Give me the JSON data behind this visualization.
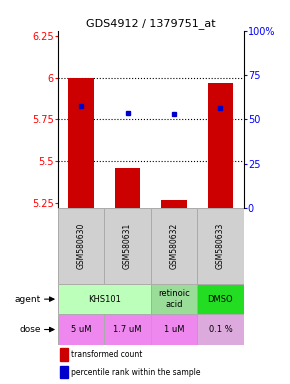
{
  "title": "GDS4912 / 1379751_at",
  "samples": [
    "GSM580630",
    "GSM580631",
    "GSM580632",
    "GSM580633"
  ],
  "bar_values": [
    6.0,
    5.46,
    5.27,
    5.97
  ],
  "bar_bottom": 5.22,
  "blue_values": [
    5.83,
    5.79,
    5.78,
    5.82
  ],
  "ylim": [
    5.22,
    6.28
  ],
  "yticks": [
    5.25,
    5.5,
    5.75,
    6.0,
    6.25
  ],
  "ytick_labels": [
    "5.25",
    "5.5",
    "5.75",
    "6",
    "6.25"
  ],
  "right_ytick_pcts": [
    0,
    25,
    50,
    75,
    100
  ],
  "right_ytick_labels": [
    "0",
    "25",
    "50",
    "75",
    "100%"
  ],
  "bar_color": "#cc0000",
  "blue_color": "#0000cc",
  "hline_values": [
    6.0,
    5.75,
    5.5
  ],
  "agent_groups": [
    {
      "start": 0,
      "end": 1,
      "label": "KHS101",
      "color": "#bbffbb"
    },
    {
      "start": 2,
      "end": 2,
      "label": "retinoic\nacid",
      "color": "#99dd99"
    },
    {
      "start": 3,
      "end": 3,
      "label": "DMSO",
      "color": "#22dd22"
    }
  ],
  "dose_labels": [
    "5 uM",
    "1.7 uM",
    "1 uM",
    "0.1 %"
  ],
  "dose_colors": [
    "#ee88ee",
    "#ee88ee",
    "#ee88ee",
    "#ddaadd"
  ],
  "sample_bg": "#d0d0d0"
}
